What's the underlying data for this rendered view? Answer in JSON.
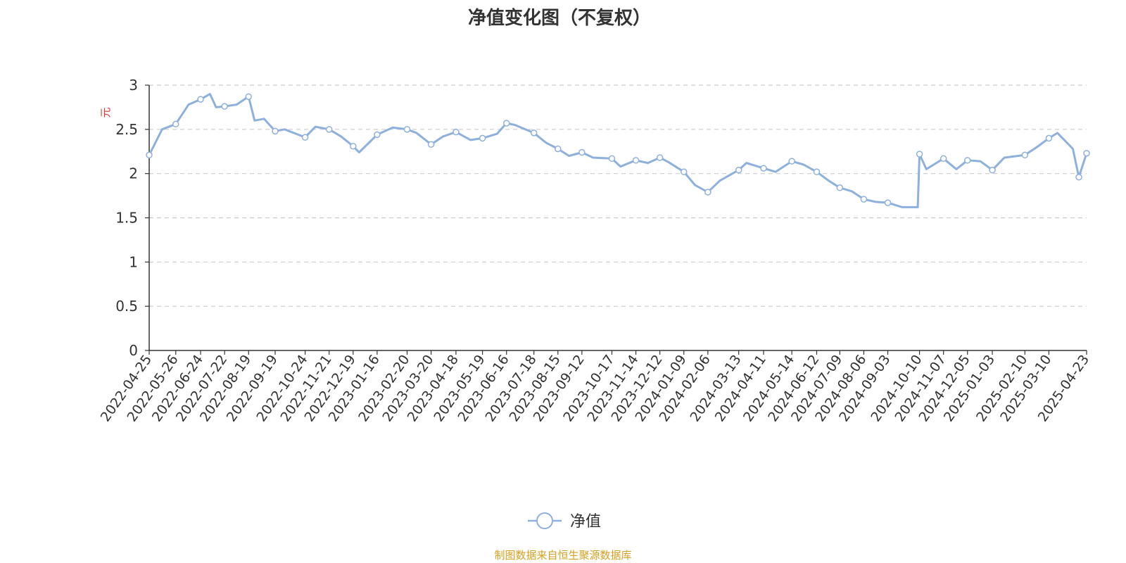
{
  "chart_data": {
    "type": "line",
    "title": "净值变化图（不复权）",
    "ylabel": "元",
    "xlabel": "",
    "ylim": [
      0,
      3
    ],
    "yticks": [
      "0",
      "0.5",
      "1",
      "1.5",
      "2",
      "2.5",
      "3"
    ],
    "grid": true,
    "legend_position": "bottom-center",
    "x_tick_labels": [
      "2022-04-25",
      "2022-05-26",
      "2022-06-24",
      "2022-07-22",
      "2022-08-19",
      "2022-09-19",
      "2022-10-24",
      "2022-11-21",
      "2022-12-19",
      "2023-01-16",
      "2023-02-20",
      "2023-03-20",
      "2023-04-18",
      "2023-05-19",
      "2023-06-16",
      "2023-07-18",
      "2023-08-15",
      "2023-09-12",
      "2023-10-17",
      "2023-11-14",
      "2023-12-12",
      "2024-01-09",
      "2024-02-06",
      "2024-03-13",
      "2024-04-11",
      "2024-05-14",
      "2024-06-12",
      "2024-07-09",
      "2024-08-06",
      "2024-09-03",
      "2024-10-10",
      "2024-11-07",
      "2024-12-05",
      "2025-01-03",
      "2025-02-10",
      "2025-03-10",
      "2025-04-23"
    ],
    "series": [
      {
        "name": "净值",
        "color": "#8eb0dc",
        "x": [
          "2022-04-25",
          "2022-05-10",
          "2022-05-26",
          "2022-06-10",
          "2022-06-24",
          "2022-07-05",
          "2022-07-12",
          "2022-07-22",
          "2022-08-05",
          "2022-08-19",
          "2022-08-26",
          "2022-09-06",
          "2022-09-19",
          "2022-09-30",
          "2022-10-24",
          "2022-11-05",
          "2022-11-21",
          "2022-12-05",
          "2022-12-19",
          "2022-12-26",
          "2023-01-16",
          "2023-02-03",
          "2023-02-20",
          "2023-03-03",
          "2023-03-20",
          "2023-04-03",
          "2023-04-18",
          "2023-05-05",
          "2023-05-19",
          "2023-06-05",
          "2023-06-16",
          "2023-06-26",
          "2023-07-18",
          "2023-08-01",
          "2023-08-15",
          "2023-08-28",
          "2023-09-12",
          "2023-09-25",
          "2023-10-17",
          "2023-10-27",
          "2023-11-14",
          "2023-11-28",
          "2023-12-12",
          "2023-12-22",
          "2024-01-09",
          "2024-01-22",
          "2024-02-06",
          "2024-02-20",
          "2024-03-13",
          "2024-03-22",
          "2024-04-11",
          "2024-04-25",
          "2024-05-14",
          "2024-05-28",
          "2024-06-12",
          "2024-06-26",
          "2024-07-09",
          "2024-07-23",
          "2024-08-06",
          "2024-08-20",
          "2024-09-03",
          "2024-09-20",
          "2024-10-08",
          "2024-10-10",
          "2024-10-18",
          "2024-11-07",
          "2024-11-22",
          "2024-12-05",
          "2024-12-20",
          "2025-01-03",
          "2025-01-17",
          "2025-02-10",
          "2025-02-24",
          "2025-03-10",
          "2025-03-20",
          "2025-04-07",
          "2025-04-14",
          "2025-04-23"
        ],
        "values": [
          2.21,
          2.5,
          2.56,
          2.78,
          2.84,
          2.9,
          2.75,
          2.76,
          2.78,
          2.87,
          2.6,
          2.62,
          2.48,
          2.5,
          2.41,
          2.53,
          2.5,
          2.42,
          2.31,
          2.24,
          2.44,
          2.52,
          2.5,
          2.46,
          2.33,
          2.42,
          2.47,
          2.38,
          2.4,
          2.45,
          2.57,
          2.55,
          2.46,
          2.35,
          2.28,
          2.2,
          2.24,
          2.18,
          2.17,
          2.08,
          2.15,
          2.12,
          2.18,
          2.13,
          2.02,
          1.87,
          1.79,
          1.92,
          2.04,
          2.12,
          2.06,
          2.02,
          2.14,
          2.1,
          2.02,
          1.92,
          1.84,
          1.8,
          1.71,
          1.68,
          1.67,
          1.62,
          1.62,
          2.22,
          2.05,
          2.17,
          2.05,
          2.15,
          2.14,
          2.04,
          2.18,
          2.21,
          2.3,
          2.4,
          2.46,
          2.28,
          1.96,
          2.23
        ]
      }
    ],
    "markers_shown_at": [
      "2022-04-25",
      "2022-05-26",
      "2022-06-24",
      "2022-07-22",
      "2022-08-19",
      "2022-09-19",
      "2022-10-24",
      "2022-11-21",
      "2022-12-19",
      "2023-01-16",
      "2023-02-20",
      "2023-03-20",
      "2023-04-18",
      "2023-05-19",
      "2023-06-16",
      "2023-07-18",
      "2023-08-15",
      "2023-09-12",
      "2023-10-17",
      "2023-11-14",
      "2023-12-12",
      "2024-01-09",
      "2024-02-06",
      "2024-03-13",
      "2024-04-11",
      "2024-05-14",
      "2024-06-12",
      "2024-07-09",
      "2024-08-06",
      "2024-09-03",
      "2024-10-10",
      "2024-11-07",
      "2024-12-05",
      "2025-01-03",
      "2025-02-10",
      "2025-03-10",
      "2025-04-14",
      "2025-04-23"
    ]
  },
  "legend": {
    "label": "净值"
  },
  "footer": {
    "source": "制图数据来自恒生聚源数据库"
  }
}
